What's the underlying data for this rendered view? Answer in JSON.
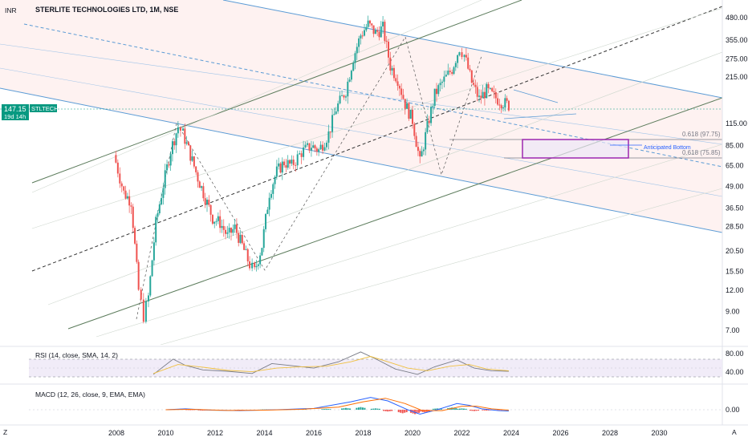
{
  "title": "STERLITE TECHNOLOGIES LTD, 1M, NSE",
  "currency": "INR",
  "symbol_badge": "STLTECH",
  "price_badge": "147.15",
  "countdown": "19d 14h",
  "price_axis_labels": [
    "480.00",
    "355.00",
    "275.00",
    "215.00",
    "115.00",
    "85.00",
    "65.00",
    "49.00",
    "36.50",
    "28.50",
    "20.50",
    "15.50",
    "12.00",
    "9.00",
    "7.00"
  ],
  "year_labels": [
    "2008",
    "2010",
    "2012",
    "2014",
    "2016",
    "2018",
    "2020",
    "2022",
    "2024",
    "2026",
    "2028",
    "2030"
  ],
  "fib_labels": [
    "0.618 (97.75)",
    "0.618 (75.85)"
  ],
  "annotation": "Anticipated Bottom",
  "rsi": {
    "label": "RSI (14, close, SMA, 14, 2)",
    "levels": [
      "80.00",
      "40.00"
    ]
  },
  "macd": {
    "label": "MACD (12, 26, close, 9, EMA, EMA)",
    "zero_label": "0.00"
  },
  "bottom_left_icon": "Z",
  "bottom_right_icon": "A",
  "colors": {
    "up": "#26a69a",
    "down": "#ef5350",
    "channel_blue": "#5b9bd5",
    "channel_green": "#5b7b5b",
    "badge": "#089981",
    "box": "#9c27b0"
  },
  "chart_data": [
    {
      "type": "candlestick",
      "title": "STERLITE TECHNOLOGIES LTD, 1M, NSE",
      "y_scale": "log",
      "ylim": [
        6,
        560
      ],
      "xlim": [
        2007.0,
        2031.0
      ],
      "last_price": 147.15,
      "series": [
        {
          "points": [
            [
              2007.9,
              75
            ],
            [
              2008.3,
              45
            ],
            [
              2008.6,
              40
            ],
            [
              2008.9,
              12
            ],
            [
              2009.1,
              8.5
            ],
            [
              2009.3,
              11
            ],
            [
              2009.6,
              30
            ],
            [
              2009.9,
              50
            ],
            [
              2010.2,
              80
            ],
            [
              2010.5,
              110
            ],
            [
              2010.7,
              100
            ],
            [
              2011.0,
              75
            ],
            [
              2011.3,
              55
            ],
            [
              2011.6,
              42
            ],
            [
              2011.9,
              32
            ],
            [
              2012.2,
              30
            ],
            [
              2012.5,
              25
            ],
            [
              2012.8,
              28
            ],
            [
              2013.1,
              22
            ],
            [
              2013.4,
              17
            ],
            [
              2013.6,
              15.5
            ],
            [
              2013.9,
              22
            ],
            [
              2014.2,
              45
            ],
            [
              2014.5,
              60
            ],
            [
              2014.8,
              68
            ],
            [
              2015.1,
              65
            ],
            [
              2015.5,
              78
            ],
            [
              2015.9,
              85
            ],
            [
              2016.2,
              80
            ],
            [
              2016.6,
              100
            ],
            [
              2016.9,
              140
            ],
            [
              2017.3,
              180
            ],
            [
              2017.6,
              280
            ],
            [
              2017.9,
              380
            ],
            [
              2018.2,
              440
            ],
            [
              2018.5,
              390
            ],
            [
              2018.8,
              420
            ],
            [
              2019.1,
              250
            ],
            [
              2019.4,
              210
            ],
            [
              2019.7,
              150
            ],
            [
              2020.0,
              120
            ],
            [
              2020.3,
              68
            ],
            [
              2020.6,
              110
            ],
            [
              2020.9,
              170
            ],
            [
              2021.2,
              200
            ],
            [
              2021.6,
              240
            ],
            [
              2021.9,
              320
            ],
            [
              2022.1,
              290
            ],
            [
              2022.4,
              200
            ],
            [
              2022.7,
              160
            ],
            [
              2023.0,
              180
            ],
            [
              2023.3,
              165
            ],
            [
              2023.6,
              155
            ],
            [
              2023.9,
              147
            ]
          ]
        }
      ]
    },
    {
      "type": "line",
      "title": "RSI (14, close, SMA, 14, 2)",
      "ylim": [
        20,
        95
      ],
      "levels": [
        80,
        40
      ],
      "series": [
        {
          "name": "RSI",
          "points": [
            [
              2009.5,
              38
            ],
            [
              2010.3,
              72
            ],
            [
              2010.8,
              58
            ],
            [
              2011.5,
              48
            ],
            [
              2012.5,
              45
            ],
            [
              2013.5,
              40
            ],
            [
              2014.3,
              62
            ],
            [
              2015.0,
              58
            ],
            [
              2016.0,
              52
            ],
            [
              2017.0,
              66
            ],
            [
              2017.9,
              88
            ],
            [
              2018.6,
              70
            ],
            [
              2019.3,
              50
            ],
            [
              2020.2,
              38
            ],
            [
              2020.9,
              55
            ],
            [
              2021.8,
              70
            ],
            [
              2022.5,
              52
            ],
            [
              2023.2,
              46
            ],
            [
              2023.9,
              45
            ]
          ]
        },
        {
          "name": "RSI-based MA",
          "points": [
            [
              2009.5,
              40
            ],
            [
              2010.5,
              60
            ],
            [
              2011.5,
              54
            ],
            [
              2012.5,
              47
            ],
            [
              2013.5,
              44
            ],
            [
              2014.5,
              52
            ],
            [
              2015.5,
              55
            ],
            [
              2016.5,
              56
            ],
            [
              2017.5,
              66
            ],
            [
              2018.3,
              78
            ],
            [
              2019.0,
              66
            ],
            [
              2019.8,
              52
            ],
            [
              2020.6,
              46
            ],
            [
              2021.5,
              56
            ],
            [
              2022.3,
              60
            ],
            [
              2023.0,
              50
            ],
            [
              2023.9,
              46
            ]
          ]
        }
      ]
    },
    {
      "type": "bar",
      "title": "MACD (12, 26, close, 9, EMA, EMA)",
      "zero": 0,
      "series": [
        {
          "name": "Histogram",
          "points": [
            [
              2010.2,
              1
            ],
            [
              2010.6,
              2
            ],
            [
              2011.0,
              -1
            ],
            [
              2011.5,
              -2
            ],
            [
              2012.0,
              -1.5
            ],
            [
              2013.0,
              -1
            ],
            [
              2014.0,
              0.5
            ],
            [
              2014.8,
              1
            ],
            [
              2015.5,
              1.2
            ],
            [
              2016.5,
              2
            ],
            [
              2017.3,
              4
            ],
            [
              2017.9,
              6
            ],
            [
              2018.5,
              3
            ],
            [
              2019.0,
              -4
            ],
            [
              2019.6,
              -8
            ],
            [
              2020.1,
              -10
            ],
            [
              2020.5,
              -6
            ],
            [
              2021.0,
              3
            ],
            [
              2021.6,
              5
            ],
            [
              2022.0,
              3
            ],
            [
              2022.5,
              -3
            ],
            [
              2023.0,
              -2
            ],
            [
              2023.6,
              -1
            ]
          ]
        },
        {
          "name": "MACD",
          "points": [
            [
              2010.0,
              0
            ],
            [
              2010.8,
              2
            ],
            [
              2011.8,
              -1
            ],
            [
              2013.0,
              -2
            ],
            [
              2014.5,
              0
            ],
            [
              2016.0,
              3
            ],
            [
              2017.5,
              18
            ],
            [
              2018.3,
              28
            ],
            [
              2019.0,
              20
            ],
            [
              2019.8,
              0
            ],
            [
              2020.3,
              -10
            ],
            [
              2021.0,
              0
            ],
            [
              2021.8,
              14
            ],
            [
              2022.3,
              10
            ],
            [
              2022.8,
              2
            ],
            [
              2023.5,
              -2
            ],
            [
              2023.9,
              -3
            ]
          ]
        },
        {
          "name": "Signal",
          "points": [
            [
              2010.0,
              0
            ],
            [
              2011.0,
              1
            ],
            [
              2012.5,
              -1.5
            ],
            [
              2014.0,
              -1
            ],
            [
              2015.5,
              1
            ],
            [
              2017.0,
              6
            ],
            [
              2018.0,
              18
            ],
            [
              2018.9,
              26
            ],
            [
              2019.7,
              14
            ],
            [
              2020.4,
              -2
            ],
            [
              2021.2,
              -2
            ],
            [
              2022.0,
              8
            ],
            [
              2022.6,
              8
            ],
            [
              2023.2,
              2
            ],
            [
              2023.9,
              -1
            ]
          ]
        }
      ]
    }
  ]
}
